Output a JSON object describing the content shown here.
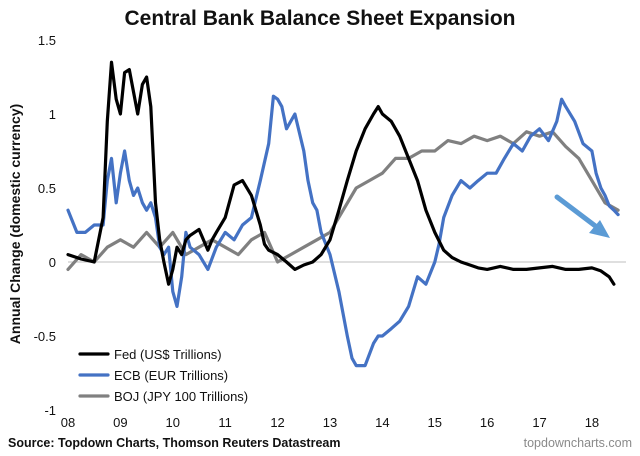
{
  "chart_data": {
    "type": "line",
    "title": "Central Bank Balance Sheet Expansion",
    "ylabel": "Annual Change (domestic currency)",
    "xlabel": "",
    "ylim": [
      -1,
      1.5
    ],
    "xlim": [
      2008,
      2018.65
    ],
    "y_ticks": [
      {
        "value": 1.5,
        "label": "1.5"
      },
      {
        "value": 1,
        "label": "1"
      },
      {
        "value": 0.5,
        "label": "0.5"
      },
      {
        "value": 0,
        "label": "0"
      },
      {
        "value": -0.5,
        "label": "-0.5"
      },
      {
        "value": -1,
        "label": "-1"
      }
    ],
    "x_ticks": [
      {
        "value": 2008,
        "label": "08"
      },
      {
        "value": 2009,
        "label": "09"
      },
      {
        "value": 2010,
        "label": "10"
      },
      {
        "value": 2011,
        "label": "11"
      },
      {
        "value": 2012,
        "label": "12"
      },
      {
        "value": 2013,
        "label": "13"
      },
      {
        "value": 2014,
        "label": "14"
      },
      {
        "value": 2015,
        "label": "15"
      },
      {
        "value": 2016,
        "label": "16"
      },
      {
        "value": 2017,
        "label": "17"
      },
      {
        "value": 2018,
        "label": "18"
      }
    ],
    "grid": false,
    "zero_line": true,
    "legend_position": "bottom-left",
    "annotation": "blue arrow pointing down-right near end of 2018",
    "source": "Source: Topdown Charts, Thomson Reuters Datastream",
    "watermark": "topdowncharts.com",
    "series": [
      {
        "name": "Fed (US$ Trillions)",
        "color": "#000000",
        "x": [
          2008.0,
          2008.25,
          2008.5,
          2008.67,
          2008.75,
          2008.83,
          2008.92,
          2009.0,
          2009.08,
          2009.17,
          2009.25,
          2009.33,
          2009.42,
          2009.5,
          2009.58,
          2009.67,
          2009.75,
          2009.83,
          2009.92,
          2010.0,
          2010.08,
          2010.17,
          2010.25,
          2010.33,
          2010.5,
          2010.67,
          2010.75,
          2010.83,
          2011.0,
          2011.17,
          2011.33,
          2011.5,
          2011.67,
          2011.75,
          2011.83,
          2012.0,
          2012.17,
          2012.33,
          2012.5,
          2012.67,
          2012.83,
          2013.0,
          2013.17,
          2013.33,
          2013.5,
          2013.67,
          2013.83,
          2013.92,
          2014.0,
          2014.17,
          2014.33,
          2014.5,
          2014.67,
          2014.83,
          2015.0,
          2015.17,
          2015.33,
          2015.5,
          2015.67,
          2015.83,
          2016.0,
          2016.25,
          2016.5,
          2016.75,
          2017.0,
          2017.25,
          2017.5,
          2017.75,
          2018.0,
          2018.17,
          2018.33,
          2018.42
        ],
        "values": [
          0.05,
          0.02,
          0.0,
          0.3,
          0.95,
          1.35,
          1.1,
          1.0,
          1.28,
          1.3,
          1.15,
          1.0,
          1.2,
          1.25,
          1.05,
          0.4,
          0.15,
          0.0,
          -0.15,
          -0.05,
          0.1,
          0.05,
          0.15,
          0.18,
          0.22,
          0.08,
          0.15,
          0.2,
          0.3,
          0.52,
          0.55,
          0.45,
          0.25,
          0.12,
          0.08,
          0.05,
          0.0,
          -0.05,
          -0.02,
          0.0,
          0.05,
          0.15,
          0.35,
          0.55,
          0.75,
          0.9,
          1.0,
          1.05,
          1.0,
          0.95,
          0.85,
          0.7,
          0.55,
          0.35,
          0.2,
          0.08,
          0.03,
          0.0,
          -0.02,
          -0.04,
          -0.05,
          -0.03,
          -0.05,
          -0.05,
          -0.04,
          -0.03,
          -0.05,
          -0.05,
          -0.04,
          -0.06,
          -0.1,
          -0.15
        ]
      },
      {
        "name": "ECB (EUR Trillions)",
        "color": "#4472c4",
        "x": [
          2008.0,
          2008.17,
          2008.33,
          2008.5,
          2008.67,
          2008.75,
          2008.83,
          2008.92,
          2009.0,
          2009.08,
          2009.17,
          2009.25,
          2009.33,
          2009.42,
          2009.5,
          2009.58,
          2009.67,
          2009.75,
          2009.83,
          2009.92,
          2010.0,
          2010.08,
          2010.17,
          2010.25,
          2010.33,
          2010.5,
          2010.67,
          2010.83,
          2011.0,
          2011.17,
          2011.33,
          2011.5,
          2011.67,
          2011.83,
          2011.92,
          2012.0,
          2012.08,
          2012.17,
          2012.33,
          2012.5,
          2012.58,
          2012.67,
          2012.75,
          2012.83,
          2013.0,
          2013.17,
          2013.33,
          2013.42,
          2013.5,
          2013.67,
          2013.83,
          2013.92,
          2014.0,
          2014.17,
          2014.33,
          2014.5,
          2014.67,
          2014.83,
          2015.0,
          2015.08,
          2015.17,
          2015.33,
          2015.5,
          2015.67,
          2015.83,
          2016.0,
          2016.17,
          2016.33,
          2016.5,
          2016.67,
          2016.83,
          2017.0,
          2017.17,
          2017.33,
          2017.42,
          2017.5,
          2017.67,
          2017.83,
          2018.0,
          2018.08,
          2018.17,
          2018.25,
          2018.33,
          2018.42,
          2018.5
        ],
        "values": [
          0.35,
          0.2,
          0.2,
          0.25,
          0.25,
          0.55,
          0.7,
          0.4,
          0.6,
          0.75,
          0.55,
          0.45,
          0.5,
          0.4,
          0.35,
          0.4,
          0.3,
          0.1,
          0.05,
          0.1,
          -0.2,
          -0.3,
          -0.1,
          0.2,
          0.1,
          0.05,
          -0.05,
          0.1,
          0.2,
          0.15,
          0.25,
          0.3,
          0.55,
          0.8,
          1.12,
          1.1,
          1.05,
          0.9,
          1.0,
          0.75,
          0.55,
          0.4,
          0.35,
          0.2,
          0.05,
          -0.2,
          -0.5,
          -0.65,
          -0.7,
          -0.7,
          -0.55,
          -0.5,
          -0.5,
          -0.45,
          -0.4,
          -0.3,
          -0.1,
          -0.15,
          0.0,
          0.12,
          0.3,
          0.45,
          0.55,
          0.5,
          0.55,
          0.6,
          0.6,
          0.7,
          0.8,
          0.75,
          0.85,
          0.9,
          0.82,
          0.95,
          1.1,
          1.05,
          0.95,
          0.8,
          0.75,
          0.6,
          0.5,
          0.45,
          0.38,
          0.35,
          0.32
        ]
      },
      {
        "name": "BOJ (JPY 100 Trillions)",
        "color": "#808080",
        "x": [
          2008.0,
          2008.25,
          2008.5,
          2008.75,
          2009.0,
          2009.25,
          2009.5,
          2009.75,
          2010.0,
          2010.25,
          2010.5,
          2010.75,
          2011.0,
          2011.25,
          2011.5,
          2011.75,
          2012.0,
          2012.25,
          2012.5,
          2012.75,
          2013.0,
          2013.25,
          2013.5,
          2013.75,
          2014.0,
          2014.25,
          2014.5,
          2014.75,
          2015.0,
          2015.25,
          2015.5,
          2015.75,
          2016.0,
          2016.25,
          2016.5,
          2016.75,
          2017.0,
          2017.25,
          2017.5,
          2017.75,
          2018.0,
          2018.25,
          2018.5
        ],
        "values": [
          -0.05,
          0.05,
          0.0,
          0.1,
          0.15,
          0.1,
          0.2,
          0.1,
          0.2,
          0.05,
          0.1,
          0.15,
          0.1,
          0.05,
          0.15,
          0.2,
          0.0,
          0.05,
          0.1,
          0.15,
          0.2,
          0.35,
          0.5,
          0.55,
          0.6,
          0.7,
          0.7,
          0.75,
          0.75,
          0.82,
          0.8,
          0.85,
          0.82,
          0.85,
          0.8,
          0.88,
          0.85,
          0.88,
          0.78,
          0.7,
          0.55,
          0.4,
          0.35
        ]
      }
    ]
  }
}
